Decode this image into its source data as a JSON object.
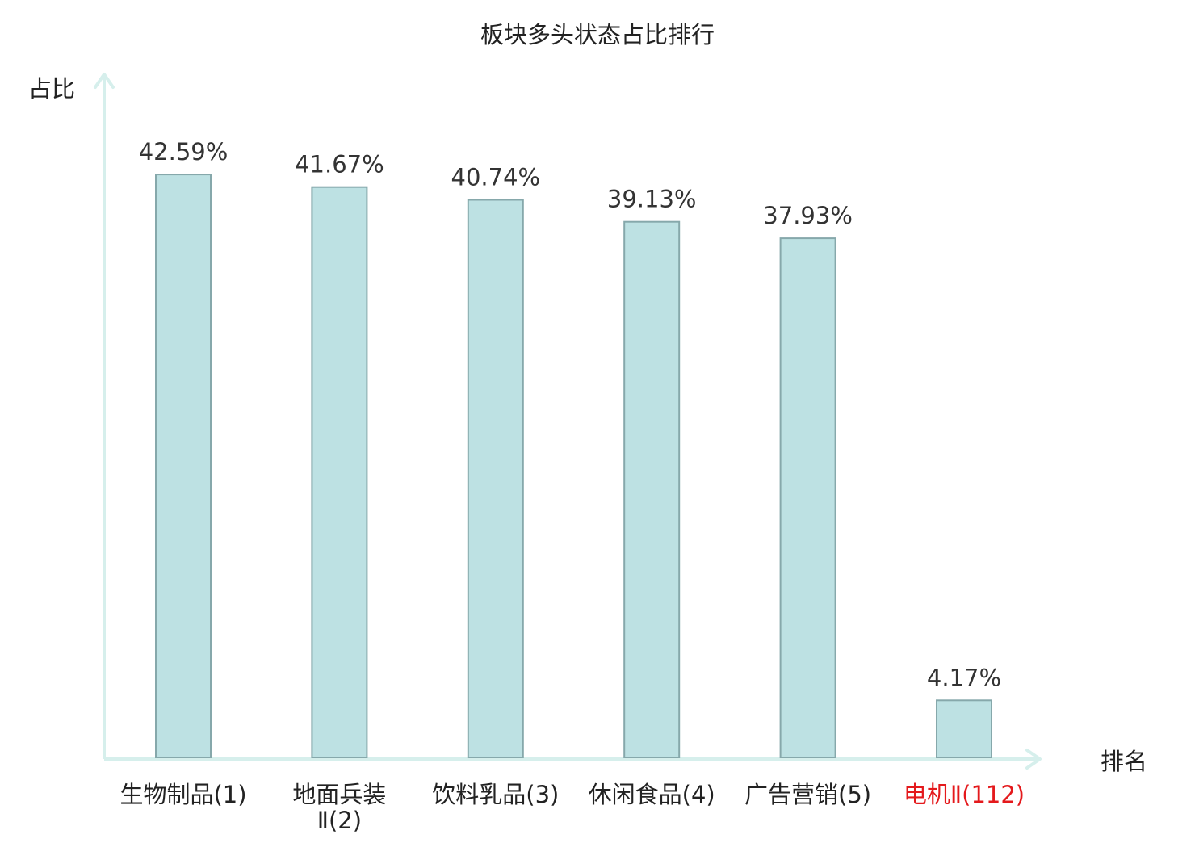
{
  "colors": {
    "bar_fill": "#bde1e3",
    "bar_stroke": "#86a8ab",
    "axis": "#d6efec",
    "text": "#222222",
    "value_text": "#333333",
    "highlight": "#e4191c"
  },
  "chart_data": {
    "type": "bar",
    "title": "板块多头状态占比排行",
    "ylabel": "占比",
    "xlabel": "排名",
    "ylim": [
      0,
      50
    ],
    "grid": false,
    "legend": "none",
    "categories": [
      {
        "lines": [
          "生物制品(1)"
        ],
        "highlight": false
      },
      {
        "lines": [
          "地面兵装",
          "Ⅱ(2)"
        ],
        "highlight": false
      },
      {
        "lines": [
          "饮料乳品(3)"
        ],
        "highlight": false
      },
      {
        "lines": [
          "休闲食品(4)"
        ],
        "highlight": false
      },
      {
        "lines": [
          "广告营销(5)"
        ],
        "highlight": false
      },
      {
        "lines": [
          "电机Ⅱ(112)"
        ],
        "highlight": true
      }
    ],
    "values": [
      42.59,
      41.67,
      40.74,
      39.13,
      37.93,
      4.17
    ],
    "value_labels": [
      "42.59%",
      "41.67%",
      "40.74%",
      "39.13%",
      "37.93%",
      "4.17%"
    ]
  }
}
